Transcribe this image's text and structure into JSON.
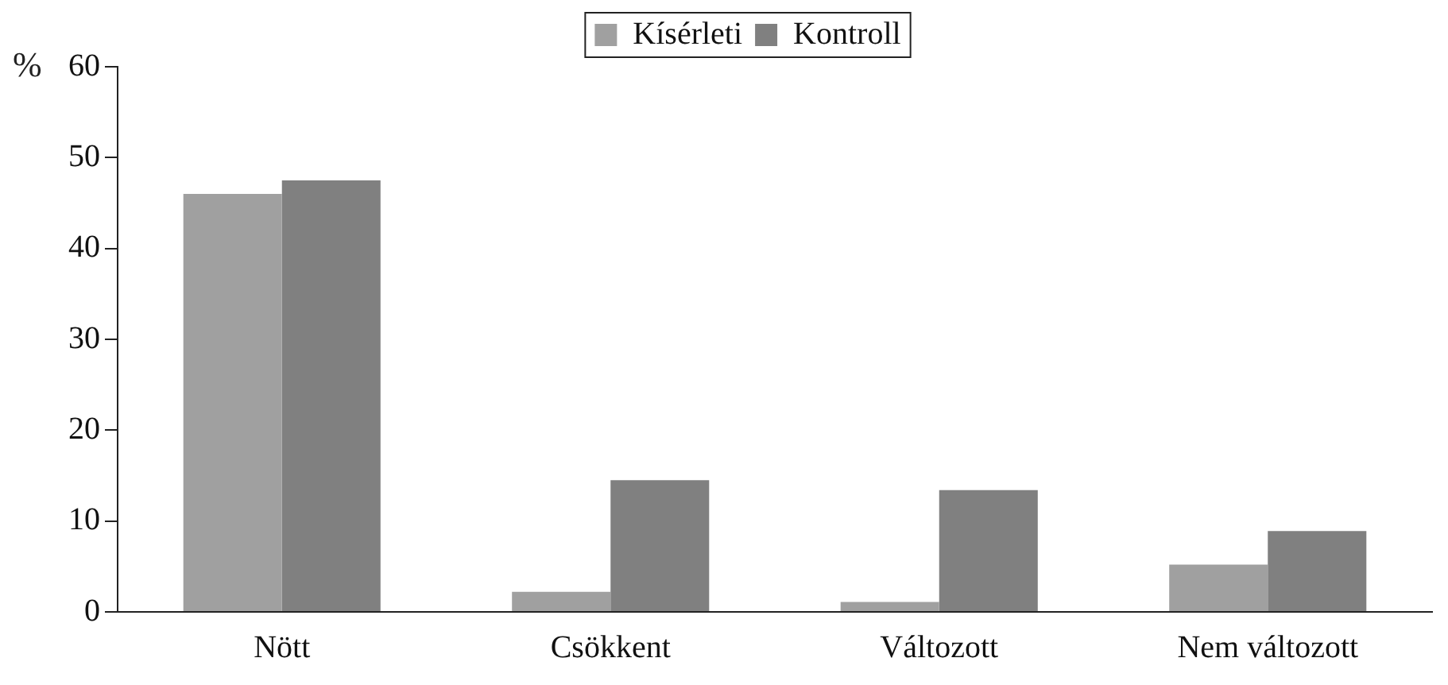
{
  "chart_data": {
    "type": "bar",
    "ylabel": "%",
    "categories": [
      "Nött",
      "Csökkent",
      "Változott",
      "Nem változott"
    ],
    "series": [
      {
        "name": "Kísérleti",
        "color": "#a0a0a0",
        "values": [
          46,
          2.2,
          1.1,
          5.2
        ]
      },
      {
        "name": "Kontroll",
        "color": "#808080",
        "values": [
          47.5,
          14.5,
          13.4,
          8.9
        ]
      }
    ],
    "ylim": [
      0,
      60
    ],
    "yticks": [
      0,
      10,
      20,
      30,
      40,
      50,
      60
    ],
    "grid": false,
    "legend": "top"
  }
}
